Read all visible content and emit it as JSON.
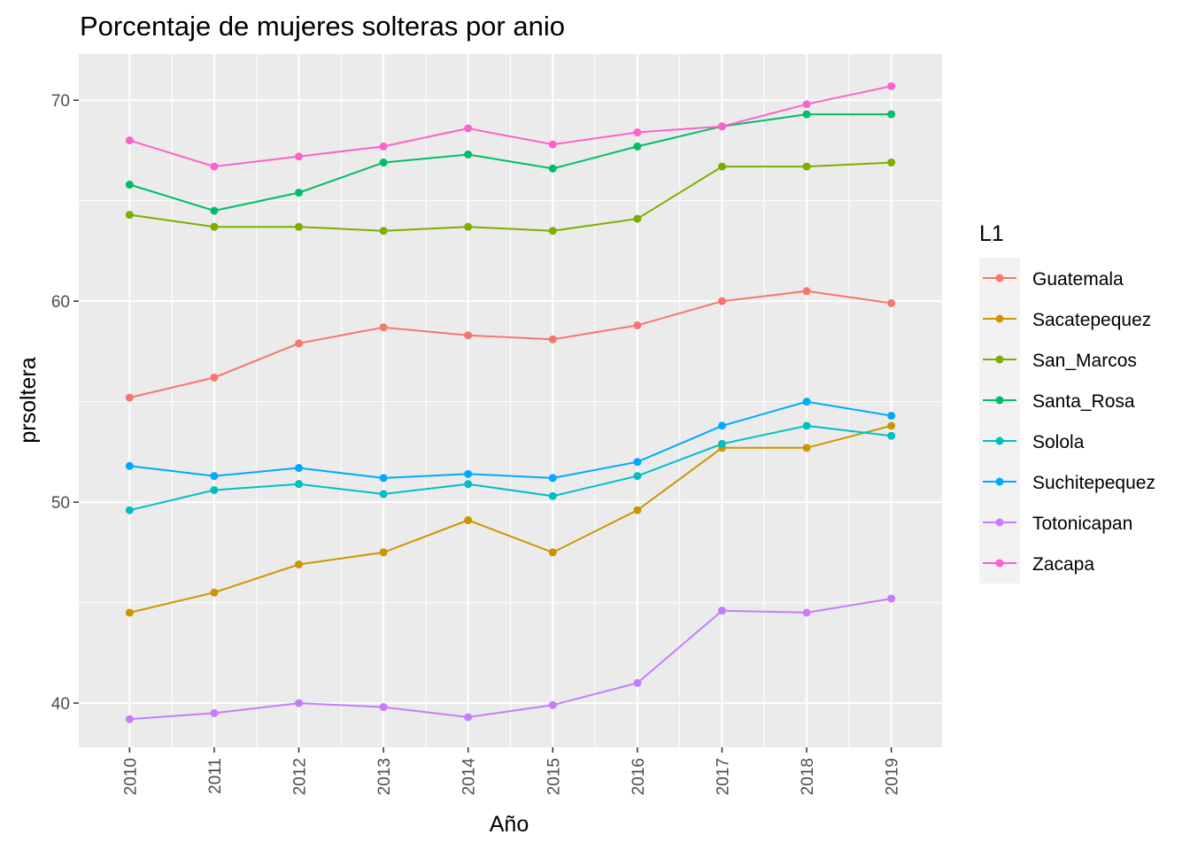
{
  "chart_data": {
    "type": "line",
    "title": "Porcentaje de mujeres solteras por anio",
    "xlabel": "Año",
    "ylabel": "prsoltera",
    "x": [
      "2010",
      "2011",
      "2012",
      "2013",
      "2014",
      "2015",
      "2016",
      "2017",
      "2018",
      "2019"
    ],
    "y_ticks": [
      "40",
      "50",
      "60",
      "70"
    ],
    "ylim": [
      37.8,
      72.3
    ],
    "grid": true,
    "legend_title": "L1",
    "legend_position": "right",
    "series": [
      {
        "name": "Guatemala",
        "color": "#F8766D",
        "values": [
          55.2,
          56.2,
          57.9,
          58.7,
          58.3,
          58.1,
          58.8,
          60.0,
          60.5,
          59.9
        ]
      },
      {
        "name": "Sacatepequez",
        "color": "#CD9600",
        "values": [
          44.5,
          45.5,
          46.9,
          47.5,
          49.1,
          47.5,
          49.6,
          52.7,
          52.7,
          53.8
        ]
      },
      {
        "name": "San_Marcos",
        "color": "#7CAE00",
        "values": [
          64.3,
          63.7,
          63.7,
          63.5,
          63.7,
          63.5,
          64.1,
          66.7,
          66.7,
          66.9
        ]
      },
      {
        "name": "Santa_Rosa",
        "color": "#00BE67",
        "values": [
          65.8,
          64.5,
          65.4,
          66.9,
          67.3,
          66.6,
          67.7,
          68.7,
          69.3,
          69.3
        ]
      },
      {
        "name": "Solola",
        "color": "#00BFC4",
        "values": [
          49.6,
          50.6,
          50.9,
          50.4,
          50.9,
          50.3,
          51.3,
          52.9,
          53.8,
          53.3
        ]
      },
      {
        "name": "Suchitepequez",
        "color": "#00A9FF",
        "values": [
          51.8,
          51.3,
          51.7,
          51.2,
          51.4,
          51.2,
          52.0,
          53.8,
          55.0,
          54.3
        ]
      },
      {
        "name": "Totonicapan",
        "color": "#C77CFF",
        "values": [
          39.2,
          39.5,
          40.0,
          39.8,
          39.3,
          39.9,
          41.0,
          44.6,
          44.5,
          45.2
        ]
      },
      {
        "name": "Zacapa",
        "color": "#FF61CC",
        "values": [
          68.0,
          66.7,
          67.2,
          67.7,
          68.6,
          67.8,
          68.4,
          68.7,
          69.8,
          70.7
        ]
      }
    ]
  }
}
